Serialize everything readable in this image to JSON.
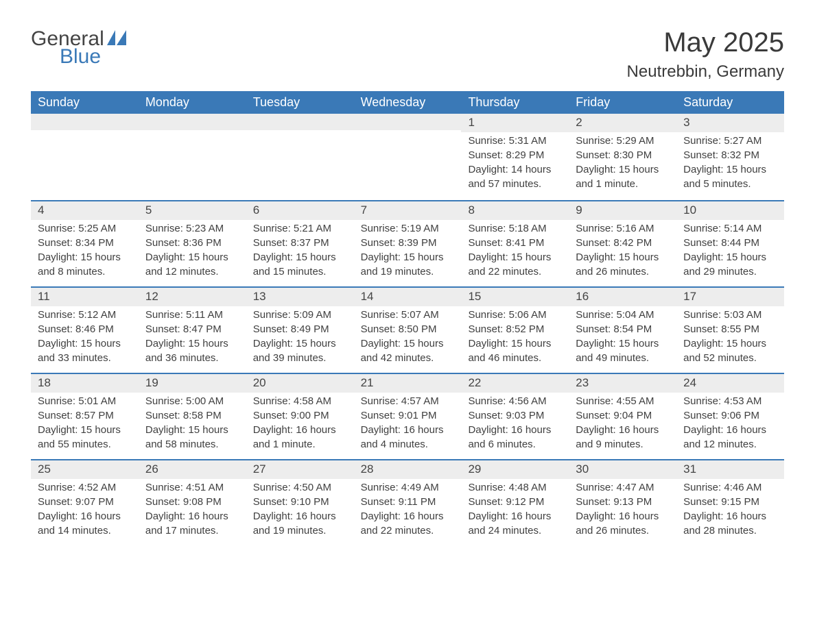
{
  "brand": {
    "word1": "General",
    "word2": "Blue"
  },
  "title": "May 2025",
  "location": "Neutrebbin, Germany",
  "colors": {
    "header_bg": "#3a79b7",
    "header_fg": "#ffffff",
    "daynum_bg": "#ededed",
    "rule": "#3a79b7",
    "text": "#404040",
    "background": "#ffffff"
  },
  "typography": {
    "title_fontsize": 40,
    "location_fontsize": 24,
    "header_fontsize": 18,
    "body_fontsize": 15
  },
  "weekdays": [
    "Sunday",
    "Monday",
    "Tuesday",
    "Wednesday",
    "Thursday",
    "Friday",
    "Saturday"
  ],
  "weeks": [
    [
      {
        "n": "",
        "sunrise": "",
        "sunset": "",
        "daylight": ""
      },
      {
        "n": "",
        "sunrise": "",
        "sunset": "",
        "daylight": ""
      },
      {
        "n": "",
        "sunrise": "",
        "sunset": "",
        "daylight": ""
      },
      {
        "n": "",
        "sunrise": "",
        "sunset": "",
        "daylight": ""
      },
      {
        "n": "1",
        "sunrise": "Sunrise: 5:31 AM",
        "sunset": "Sunset: 8:29 PM",
        "daylight": "Daylight: 14 hours and 57 minutes."
      },
      {
        "n": "2",
        "sunrise": "Sunrise: 5:29 AM",
        "sunset": "Sunset: 8:30 PM",
        "daylight": "Daylight: 15 hours and 1 minute."
      },
      {
        "n": "3",
        "sunrise": "Sunrise: 5:27 AM",
        "sunset": "Sunset: 8:32 PM",
        "daylight": "Daylight: 15 hours and 5 minutes."
      }
    ],
    [
      {
        "n": "4",
        "sunrise": "Sunrise: 5:25 AM",
        "sunset": "Sunset: 8:34 PM",
        "daylight": "Daylight: 15 hours and 8 minutes."
      },
      {
        "n": "5",
        "sunrise": "Sunrise: 5:23 AM",
        "sunset": "Sunset: 8:36 PM",
        "daylight": "Daylight: 15 hours and 12 minutes."
      },
      {
        "n": "6",
        "sunrise": "Sunrise: 5:21 AM",
        "sunset": "Sunset: 8:37 PM",
        "daylight": "Daylight: 15 hours and 15 minutes."
      },
      {
        "n": "7",
        "sunrise": "Sunrise: 5:19 AM",
        "sunset": "Sunset: 8:39 PM",
        "daylight": "Daylight: 15 hours and 19 minutes."
      },
      {
        "n": "8",
        "sunrise": "Sunrise: 5:18 AM",
        "sunset": "Sunset: 8:41 PM",
        "daylight": "Daylight: 15 hours and 22 minutes."
      },
      {
        "n": "9",
        "sunrise": "Sunrise: 5:16 AM",
        "sunset": "Sunset: 8:42 PM",
        "daylight": "Daylight: 15 hours and 26 minutes."
      },
      {
        "n": "10",
        "sunrise": "Sunrise: 5:14 AM",
        "sunset": "Sunset: 8:44 PM",
        "daylight": "Daylight: 15 hours and 29 minutes."
      }
    ],
    [
      {
        "n": "11",
        "sunrise": "Sunrise: 5:12 AM",
        "sunset": "Sunset: 8:46 PM",
        "daylight": "Daylight: 15 hours and 33 minutes."
      },
      {
        "n": "12",
        "sunrise": "Sunrise: 5:11 AM",
        "sunset": "Sunset: 8:47 PM",
        "daylight": "Daylight: 15 hours and 36 minutes."
      },
      {
        "n": "13",
        "sunrise": "Sunrise: 5:09 AM",
        "sunset": "Sunset: 8:49 PM",
        "daylight": "Daylight: 15 hours and 39 minutes."
      },
      {
        "n": "14",
        "sunrise": "Sunrise: 5:07 AM",
        "sunset": "Sunset: 8:50 PM",
        "daylight": "Daylight: 15 hours and 42 minutes."
      },
      {
        "n": "15",
        "sunrise": "Sunrise: 5:06 AM",
        "sunset": "Sunset: 8:52 PM",
        "daylight": "Daylight: 15 hours and 46 minutes."
      },
      {
        "n": "16",
        "sunrise": "Sunrise: 5:04 AM",
        "sunset": "Sunset: 8:54 PM",
        "daylight": "Daylight: 15 hours and 49 minutes."
      },
      {
        "n": "17",
        "sunrise": "Sunrise: 5:03 AM",
        "sunset": "Sunset: 8:55 PM",
        "daylight": "Daylight: 15 hours and 52 minutes."
      }
    ],
    [
      {
        "n": "18",
        "sunrise": "Sunrise: 5:01 AM",
        "sunset": "Sunset: 8:57 PM",
        "daylight": "Daylight: 15 hours and 55 minutes."
      },
      {
        "n": "19",
        "sunrise": "Sunrise: 5:00 AM",
        "sunset": "Sunset: 8:58 PM",
        "daylight": "Daylight: 15 hours and 58 minutes."
      },
      {
        "n": "20",
        "sunrise": "Sunrise: 4:58 AM",
        "sunset": "Sunset: 9:00 PM",
        "daylight": "Daylight: 16 hours and 1 minute."
      },
      {
        "n": "21",
        "sunrise": "Sunrise: 4:57 AM",
        "sunset": "Sunset: 9:01 PM",
        "daylight": "Daylight: 16 hours and 4 minutes."
      },
      {
        "n": "22",
        "sunrise": "Sunrise: 4:56 AM",
        "sunset": "Sunset: 9:03 PM",
        "daylight": "Daylight: 16 hours and 6 minutes."
      },
      {
        "n": "23",
        "sunrise": "Sunrise: 4:55 AM",
        "sunset": "Sunset: 9:04 PM",
        "daylight": "Daylight: 16 hours and 9 minutes."
      },
      {
        "n": "24",
        "sunrise": "Sunrise: 4:53 AM",
        "sunset": "Sunset: 9:06 PM",
        "daylight": "Daylight: 16 hours and 12 minutes."
      }
    ],
    [
      {
        "n": "25",
        "sunrise": "Sunrise: 4:52 AM",
        "sunset": "Sunset: 9:07 PM",
        "daylight": "Daylight: 16 hours and 14 minutes."
      },
      {
        "n": "26",
        "sunrise": "Sunrise: 4:51 AM",
        "sunset": "Sunset: 9:08 PM",
        "daylight": "Daylight: 16 hours and 17 minutes."
      },
      {
        "n": "27",
        "sunrise": "Sunrise: 4:50 AM",
        "sunset": "Sunset: 9:10 PM",
        "daylight": "Daylight: 16 hours and 19 minutes."
      },
      {
        "n": "28",
        "sunrise": "Sunrise: 4:49 AM",
        "sunset": "Sunset: 9:11 PM",
        "daylight": "Daylight: 16 hours and 22 minutes."
      },
      {
        "n": "29",
        "sunrise": "Sunrise: 4:48 AM",
        "sunset": "Sunset: 9:12 PM",
        "daylight": "Daylight: 16 hours and 24 minutes."
      },
      {
        "n": "30",
        "sunrise": "Sunrise: 4:47 AM",
        "sunset": "Sunset: 9:13 PM",
        "daylight": "Daylight: 16 hours and 26 minutes."
      },
      {
        "n": "31",
        "sunrise": "Sunrise: 4:46 AM",
        "sunset": "Sunset: 9:15 PM",
        "daylight": "Daylight: 16 hours and 28 minutes."
      }
    ]
  ]
}
